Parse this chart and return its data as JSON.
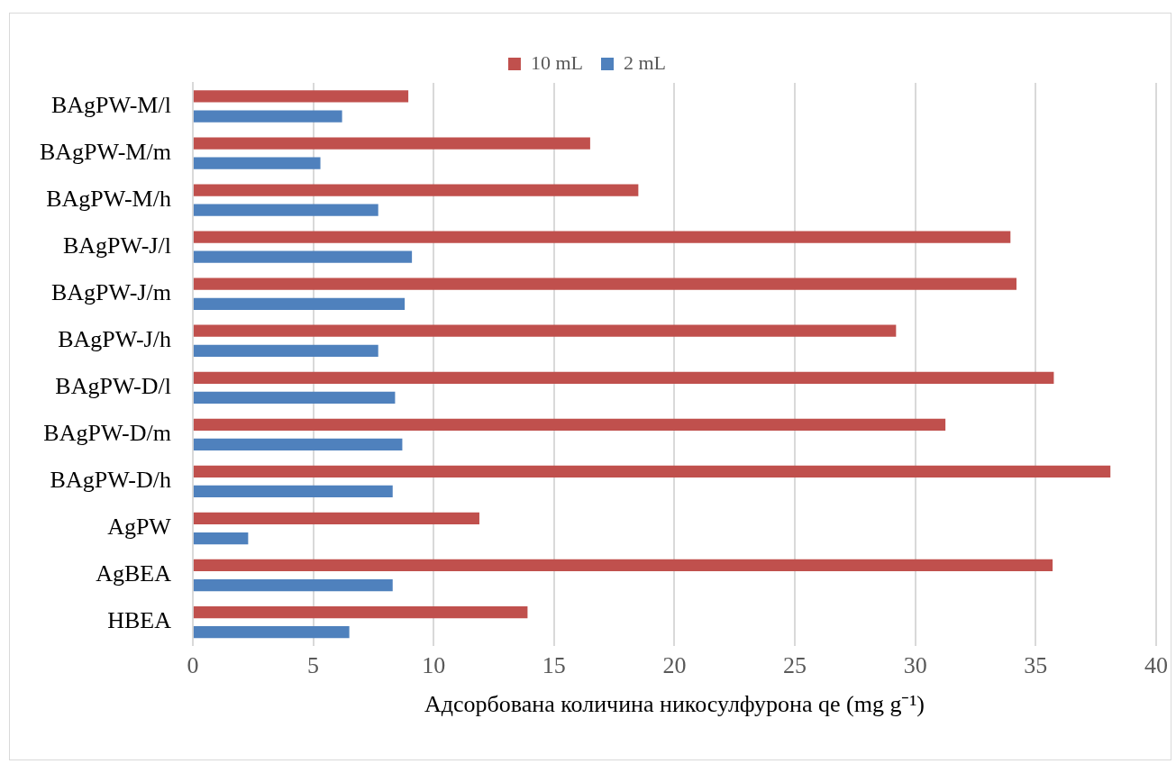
{
  "chart_data": {
    "type": "bar",
    "orientation": "horizontal",
    "xlabel": "Адсорбована количина никосулфурона qe (mg g⁻¹)",
    "categories": [
      "BAgPW-M/l",
      "BAgPW-M/m",
      "BAgPW-M/h",
      "BAgPW-J/l",
      "BAgPW-J/m",
      "BAgPW-J/h",
      "BAgPW-D/l",
      "BAgPW-D/m",
      "BAgPW-D/h",
      "AgPW",
      "AgBEA",
      "HBEA"
    ],
    "series": [
      {
        "name": "10 mL",
        "color": "#c0504d",
        "values": [
          8.95,
          16.5,
          18.5,
          33.95,
          34.2,
          29.2,
          35.75,
          31.25,
          38.1,
          11.9,
          35.7,
          13.9
        ]
      },
      {
        "name": "2 mL",
        "color": "#4f81bd",
        "values": [
          6.2,
          5.3,
          7.7,
          9.1,
          8.8,
          7.7,
          8.4,
          8.7,
          8.3,
          2.3,
          8.3,
          6.5
        ]
      }
    ],
    "xlim": [
      0,
      40
    ],
    "xticks": [
      0,
      5,
      10,
      15,
      20,
      25,
      30,
      35,
      40
    ],
    "grid": "x",
    "legend": "top"
  }
}
